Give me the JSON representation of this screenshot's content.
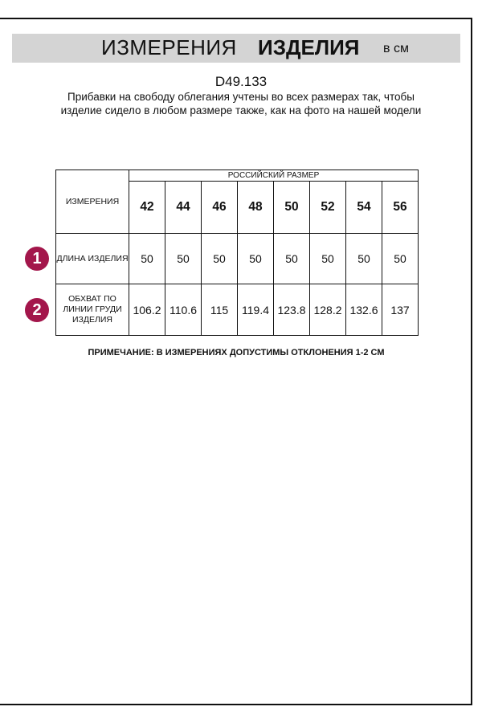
{
  "header": {
    "title_regular": "ИЗМЕРЕНИЯ",
    "title_bold": "ИЗДЕЛИЯ",
    "unit": "в см",
    "bar_color": "#d4d4d4"
  },
  "article": "D49.133",
  "description": "Прибавки на свободу облегания учтены во всех размерах так, чтобы изделие сидело в любом размере также, как на фото на нашей модели",
  "table": {
    "measure_header": "ИЗМЕРЕНИЯ",
    "size_caption": "РОССИЙСКИЙ РАЗМЕР",
    "sizes": [
      "42",
      "44",
      "46",
      "48",
      "50",
      "52",
      "54",
      "56"
    ],
    "rows": [
      {
        "marker": "1",
        "label": "ДЛИНА ИЗДЕЛИЯ",
        "values": [
          "50",
          "50",
          "50",
          "50",
          "50",
          "50",
          "50",
          "50"
        ]
      },
      {
        "marker": "2",
        "label": "ОБХВАТ ПО ЛИНИИ ГРУДИ ИЗДЕЛИЯ",
        "values": [
          "106.2",
          "110.6",
          "115",
          "119.4",
          "123.8",
          "128.2",
          "132.6",
          "137"
        ]
      }
    ],
    "marker_color": "#a3164b"
  },
  "note": "ПРИМЕЧАНИЕ: В ИЗМЕРЕНИЯХ ДОПУСТИМЫ ОТКЛОНЕНИЯ 1-2 СМ"
}
